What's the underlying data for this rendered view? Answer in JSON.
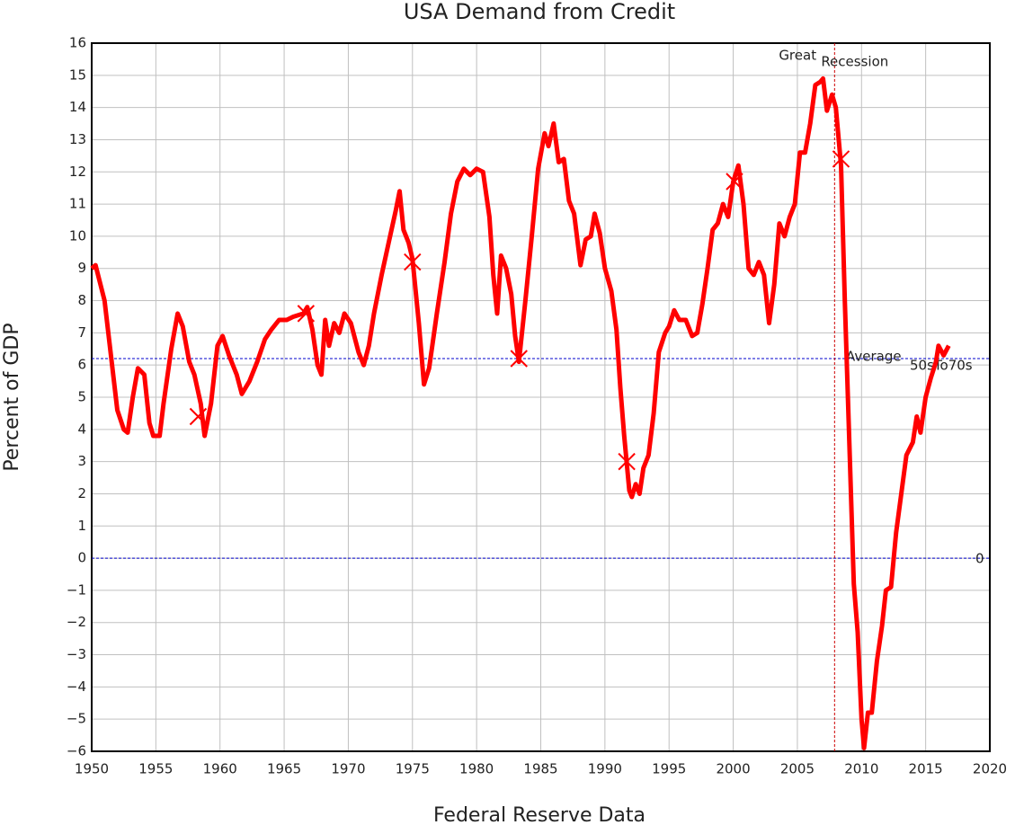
{
  "chart_data": {
    "type": "line",
    "title": "USA Demand from Credit",
    "x_label": "Federal Reserve Data",
    "y_label": "Percent of GDP",
    "color": "#ff0000",
    "grid": true,
    "xlim": [
      1950,
      2020
    ],
    "xticks": [
      1950,
      1955,
      1960,
      1965,
      1970,
      1975,
      1980,
      1985,
      1990,
      1995,
      2000,
      2005,
      2010,
      2015,
      2020
    ],
    "ylim": [
      -6,
      16
    ],
    "yticks": [
      {
        "value": -6,
        "label": "−6"
      },
      {
        "value": -5,
        "label": "−5"
      },
      {
        "value": -4,
        "label": "−4"
      },
      {
        "value": -3,
        "label": "−3"
      },
      {
        "value": -2,
        "label": "−2"
      },
      {
        "value": -1,
        "label": "−1"
      },
      0,
      1,
      2,
      3,
      4,
      5,
      6,
      7,
      8,
      9,
      10,
      11,
      12,
      13,
      14,
      15,
      16
    ],
    "x": [
      1950.0,
      1950.3,
      1951.0,
      1951.5,
      1952.0,
      1952.5,
      1952.8,
      1953.2,
      1953.6,
      1954.1,
      1954.5,
      1954.8,
      1955.3,
      1955.6,
      1956.2,
      1956.7,
      1957.1,
      1957.6,
      1958.0,
      1958.5,
      1958.8,
      1959.3,
      1959.8,
      1960.2,
      1960.7,
      1961.3,
      1961.7,
      1962.3,
      1962.9,
      1963.5,
      1964.0,
      1964.6,
      1965.2,
      1965.7,
      1966.5,
      1966.8,
      1967.2,
      1967.6,
      1967.9,
      1968.2,
      1968.5,
      1968.9,
      1969.3,
      1969.7,
      1970.2,
      1970.8,
      1971.2,
      1971.6,
      1972.0,
      1972.6,
      1973.2,
      1973.7,
      1974.0,
      1974.3,
      1974.7,
      1975.0,
      1975.5,
      1975.9,
      1976.3,
      1976.9,
      1977.5,
      1978.0,
      1978.5,
      1979.0,
      1979.5,
      1980.0,
      1980.5,
      1981.0,
      1981.3,
      1981.6,
      1981.9,
      1982.3,
      1982.7,
      1983.0,
      1983.3,
      1983.8,
      1984.3,
      1984.8,
      1985.3,
      1985.6,
      1986.0,
      1986.4,
      1986.8,
      1987.2,
      1987.6,
      1988.1,
      1988.5,
      1988.9,
      1989.2,
      1989.6,
      1990.0,
      1990.5,
      1990.9,
      1991.2,
      1991.5,
      1991.9,
      1992.1,
      1992.4,
      1992.7,
      1993.0,
      1993.4,
      1993.8,
      1994.2,
      1994.7,
      1995.0,
      1995.4,
      1995.8,
      1996.3,
      1996.8,
      1997.2,
      1997.6,
      1998.0,
      1998.4,
      1998.8,
      1999.2,
      1999.6,
      2000.0,
      2000.4,
      2000.8,
      2001.2,
      2001.6,
      2002.0,
      2002.4,
      2002.8,
      2003.2,
      2003.6,
      2004.0,
      2004.4,
      2004.8,
      2005.2,
      2005.6,
      2006.0,
      2006.4,
      2006.8,
      2007.0,
      2007.3,
      2007.7,
      2008.0,
      2008.4,
      2008.7,
      2009.1,
      2009.4,
      2009.7,
      2010.0,
      2010.2,
      2010.5,
      2010.8,
      2011.2,
      2011.6,
      2011.9,
      2012.3,
      2012.7,
      2013.1,
      2013.5,
      2014.0,
      2014.3,
      2014.6,
      2015.0,
      2015.4,
      2015.8,
      2016.0,
      2016.4,
      2016.8
    ],
    "values": [
      9.0,
      9.1,
      8.0,
      6.3,
      4.6,
      4.0,
      3.9,
      5.0,
      5.9,
      5.7,
      4.2,
      3.8,
      3.8,
      4.8,
      6.5,
      7.6,
      7.2,
      6.1,
      5.7,
      4.8,
      3.8,
      4.8,
      6.6,
      6.9,
      6.3,
      5.7,
      5.1,
      5.5,
      6.1,
      6.8,
      7.1,
      7.4,
      7.4,
      7.5,
      7.6,
      7.8,
      7.1,
      6.0,
      5.7,
      7.4,
      6.6,
      7.3,
      7.0,
      7.6,
      7.3,
      6.4,
      6.0,
      6.6,
      7.6,
      8.8,
      9.9,
      10.8,
      11.4,
      10.2,
      9.8,
      9.3,
      7.3,
      5.4,
      5.9,
      7.6,
      9.2,
      10.7,
      11.7,
      12.1,
      11.9,
      12.1,
      12.0,
      10.6,
      8.8,
      7.6,
      9.4,
      9.0,
      8.2,
      6.9,
      6.1,
      8.0,
      10.0,
      12.1,
      13.2,
      12.8,
      13.5,
      12.3,
      12.4,
      11.1,
      10.7,
      9.1,
      9.9,
      10.0,
      10.7,
      10.1,
      9.0,
      8.3,
      7.1,
      5.3,
      3.8,
      2.1,
      1.9,
      2.3,
      2.0,
      2.8,
      3.2,
      4.5,
      6.4,
      7.0,
      7.2,
      7.7,
      7.4,
      7.4,
      6.9,
      7.0,
      7.9,
      9.0,
      10.2,
      10.4,
      11.0,
      10.6,
      11.7,
      12.2,
      11.0,
      9.0,
      8.8,
      9.2,
      8.8,
      7.3,
      8.5,
      10.4,
      10.0,
      10.6,
      11.0,
      12.6,
      12.6,
      13.5,
      14.7,
      14.8,
      14.9,
      13.9,
      14.4,
      14.0,
      12.2,
      8.0,
      3.0,
      -0.8,
      -2.3,
      -5.0,
      -5.9,
      -4.8,
      -4.8,
      -3.2,
      -2.1,
      -1.0,
      -0.9,
      0.8,
      2.0,
      3.2,
      3.6,
      4.4,
      3.9,
      5.0,
      5.6,
      6.1,
      6.6,
      6.3,
      6.6
    ],
    "markers": {
      "x": [
        1958.3,
        1966.7,
        1975.0,
        1983.3,
        1991.7,
        2000.1,
        2008.4
      ],
      "values": [
        4.4,
        7.6,
        9.2,
        6.2,
        3.0,
        11.7,
        12.4
      ]
    },
    "reference_lines": [
      {
        "axis": "y",
        "value": 6.2,
        "color": "#0000cc",
        "labels": [
          "Average",
          "50sTo70s"
        ]
      },
      {
        "axis": "y",
        "value": 0,
        "color": "#0000cc",
        "labels": [
          "0"
        ]
      },
      {
        "axis": "x",
        "value": 2007.9,
        "color": "#cc0000",
        "labels": [
          "Great",
          "Recession"
        ]
      }
    ]
  }
}
